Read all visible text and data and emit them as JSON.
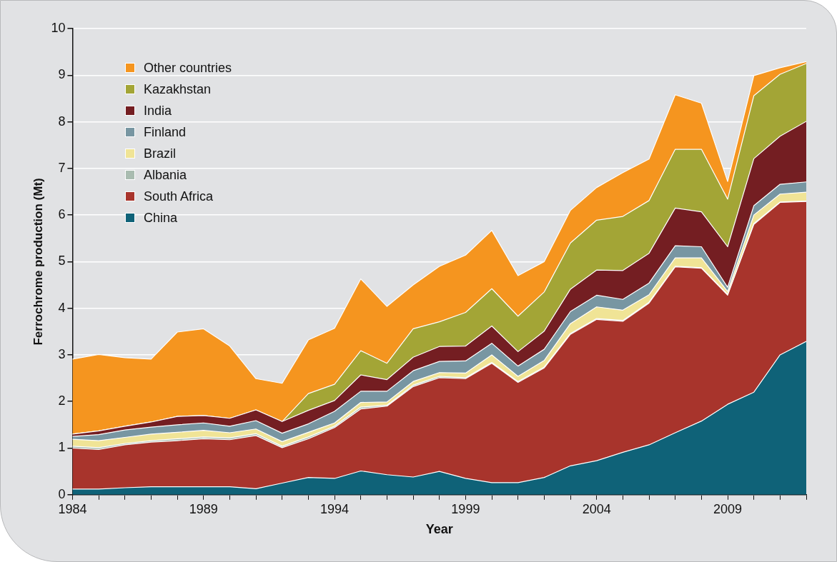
{
  "chart_data": {
    "type": "area",
    "stacked": true,
    "xlabel": "Year",
    "ylabel": "Ferrochrome production (Mt)",
    "x": [
      1984,
      1985,
      1986,
      1987,
      1988,
      1989,
      1990,
      1991,
      1992,
      1993,
      1994,
      1995,
      1996,
      1997,
      1998,
      1999,
      2000,
      2001,
      2002,
      2003,
      2004,
      2005,
      2006,
      2007,
      2008,
      2009,
      2010,
      2011,
      2012
    ],
    "xlim": [
      1984,
      2012
    ],
    "xticks": [
      1984,
      {
        "value": 1985,
        "label": null
      },
      {
        "value": 1986,
        "label": null
      },
      {
        "value": 1987,
        "label": null
      },
      {
        "value": 1988,
        "label": null
      },
      1989,
      {
        "value": 1990,
        "label": null
      },
      {
        "value": 1991,
        "label": null
      },
      {
        "value": 1992,
        "label": null
      },
      {
        "value": 1993,
        "label": null
      },
      1994,
      {
        "value": 1995,
        "label": null
      },
      {
        "value": 1996,
        "label": null
      },
      {
        "value": 1997,
        "label": null
      },
      {
        "value": 1998,
        "label": null
      },
      1999,
      {
        "value": 2000,
        "label": null
      },
      {
        "value": 2001,
        "label": null
      },
      {
        "value": 2002,
        "label": null
      },
      {
        "value": 2003,
        "label": null
      },
      2004,
      {
        "value": 2005,
        "label": null
      },
      {
        "value": 2006,
        "label": null
      },
      {
        "value": 2007,
        "label": null
      },
      {
        "value": 2008,
        "label": null
      },
      2009,
      {
        "value": 2010,
        "label": null
      },
      {
        "value": 2011,
        "label": null
      },
      {
        "value": 2012,
        "label": null
      }
    ],
    "ylim": [
      0,
      10
    ],
    "yticks": [
      0,
      1,
      2,
      3,
      4,
      5,
      6,
      7,
      8,
      9,
      10
    ],
    "grid": "y",
    "legend": "top left",
    "marker": "none",
    "series": [
      {
        "name": "China",
        "color": "#0f6278",
        "values": [
          0.12,
          0.12,
          0.15,
          0.17,
          0.17,
          0.17,
          0.17,
          0.13,
          0.25,
          0.37,
          0.35,
          0.51,
          0.43,
          0.38,
          0.5,
          0.35,
          0.26,
          0.26,
          0.37,
          0.62,
          0.73,
          0.91,
          1.07,
          1.33,
          1.58,
          1.94,
          2.2,
          3.0,
          3.29
        ]
      },
      {
        "name": "South Africa",
        "color": "#a8342c",
        "values": [
          0.88,
          0.85,
          0.92,
          0.96,
          0.99,
          1.03,
          1.01,
          1.14,
          0.76,
          0.83,
          1.09,
          1.33,
          1.47,
          1.94,
          2.01,
          2.14,
          2.56,
          2.15,
          2.35,
          2.82,
          3.03,
          2.81,
          3.04,
          3.56,
          3.28,
          2.34,
          3.6,
          3.27,
          3.0
        ]
      },
      {
        "name": "Albania",
        "color": "#a9bcb0",
        "values": [
          0.04,
          0.04,
          0.03,
          0.03,
          0.04,
          0.04,
          0.04,
          0.04,
          0.03,
          0.04,
          0.03,
          0.04,
          0.02,
          0.03,
          0.03,
          0.02,
          0.02,
          0.02,
          0.02,
          0.02,
          0.02,
          0.02,
          0.02,
          0.01,
          0.01,
          0.02,
          0.02,
          0.01,
          0.01
        ]
      },
      {
        "name": "Brazil",
        "color": "#f0e496",
        "values": [
          0.15,
          0.15,
          0.13,
          0.14,
          0.14,
          0.14,
          0.11,
          0.1,
          0.1,
          0.1,
          0.07,
          0.1,
          0.07,
          0.08,
          0.08,
          0.1,
          0.16,
          0.11,
          0.14,
          0.21,
          0.25,
          0.22,
          0.16,
          0.18,
          0.21,
          0.06,
          0.18,
          0.17,
          0.19
        ]
      },
      {
        "name": "Finland",
        "color": "#7896a2",
        "values": [
          0.06,
          0.13,
          0.16,
          0.15,
          0.16,
          0.16,
          0.14,
          0.18,
          0.18,
          0.18,
          0.25,
          0.24,
          0.23,
          0.23,
          0.24,
          0.26,
          0.25,
          0.22,
          0.24,
          0.26,
          0.25,
          0.23,
          0.25,
          0.26,
          0.24,
          0.09,
          0.2,
          0.21,
          0.22
        ]
      },
      {
        "name": "India",
        "color": "#741e22",
        "values": [
          0.05,
          0.08,
          0.08,
          0.11,
          0.18,
          0.16,
          0.17,
          0.23,
          0.25,
          0.29,
          0.23,
          0.35,
          0.25,
          0.29,
          0.32,
          0.32,
          0.37,
          0.31,
          0.39,
          0.48,
          0.54,
          0.62,
          0.64,
          0.81,
          0.75,
          0.87,
          1.01,
          1.03,
          1.3
        ]
      },
      {
        "name": "Kazakhstan",
        "color": "#a3a536",
        "values": [
          0,
          0,
          0,
          0,
          0,
          0,
          0,
          0,
          0,
          0.36,
          0.35,
          0.52,
          0.35,
          0.61,
          0.53,
          0.72,
          0.8,
          0.76,
          0.84,
          0.99,
          1.07,
          1.16,
          1.13,
          1.26,
          1.34,
          1.02,
          1.35,
          1.33,
          1.24
        ]
      },
      {
        "name": "Other countries",
        "color": "#f5951f",
        "values": [
          1.61,
          1.64,
          1.47,
          1.35,
          1.81,
          1.86,
          1.55,
          0.67,
          0.82,
          1.15,
          1.2,
          1.54,
          1.22,
          0.94,
          1.19,
          1.23,
          1.25,
          0.87,
          0.65,
          0.7,
          0.7,
          0.94,
          0.89,
          1.17,
          0.99,
          0.38,
          0.43,
          0.14,
          0.04
        ]
      }
    ]
  }
}
